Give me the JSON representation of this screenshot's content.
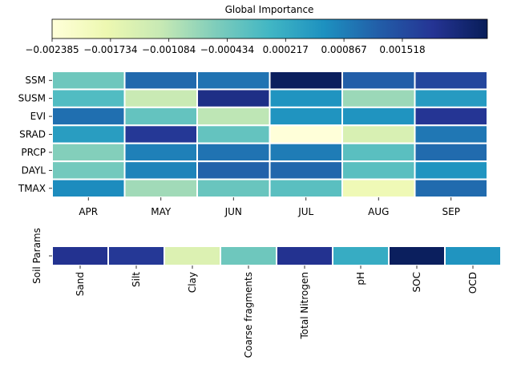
{
  "chart_data": [
    {
      "type": "heatmap",
      "title": "Global Importance",
      "colorbar": {
        "ticks": [
          "−0.002385",
          "−0.001734",
          "−0.001084",
          "−0.000434",
          "0.000217",
          "0.000867",
          "0.001518"
        ],
        "tick_values": [
          -0.002385,
          -0.001734,
          -0.001084,
          -0.000434,
          0.000217,
          0.000867,
          0.001518
        ],
        "vmin": -0.002385,
        "vmax": 0.002465,
        "colormap": "YlGnBu",
        "colors": [
          "#ffffd9",
          "#edf8b1",
          "#c7e9b4",
          "#7fcdbb",
          "#41b6c4",
          "#1d91c0",
          "#225ea8",
          "#253494",
          "#081d58"
        ]
      },
      "rows": [
        "SSM",
        "SUSM",
        "EVI",
        "SRAD",
        "PRCP",
        "DAYL",
        "TMAX"
      ],
      "columns": [
        "APR",
        "MAY",
        "JUN",
        "JUL",
        "AUG",
        "SEP"
      ],
      "values": [
        [
          -0.0004,
          0.00112,
          0.001,
          0.0024,
          0.00125,
          0.0016
        ],
        [
          -0.00012,
          -0.0012,
          0.002,
          0.0006,
          -0.0008,
          0.0005
        ],
        [
          0.00105,
          -0.0003,
          -0.0011,
          0.0006,
          0.0006,
          0.00185
        ],
        [
          0.00045,
          0.0018,
          -0.0003,
          -0.00238,
          -0.00145,
          0.00095
        ],
        [
          -0.0006,
          0.00085,
          0.001,
          0.0009,
          -0.0002,
          0.0011
        ],
        [
          -0.00045,
          0.0008,
          0.0012,
          0.00115,
          -0.0002,
          0.0006
        ],
        [
          0.0007,
          -0.00085,
          -0.00035,
          -0.0002,
          -0.00185,
          0.0011
        ]
      ]
    },
    {
      "type": "heatmap",
      "ylabel": "Soil Params",
      "rows": [
        ""
      ],
      "columns": [
        "Sand",
        "Silt",
        "Clay",
        "Coarse fragments",
        "Total Nitrogen",
        "pH",
        "SOC",
        "OCD"
      ],
      "values": [
        [
          0.0019,
          0.0018,
          -0.0015,
          -0.0004,
          0.0019,
          0.0002,
          0.0024,
          0.0006
        ]
      ]
    }
  ]
}
